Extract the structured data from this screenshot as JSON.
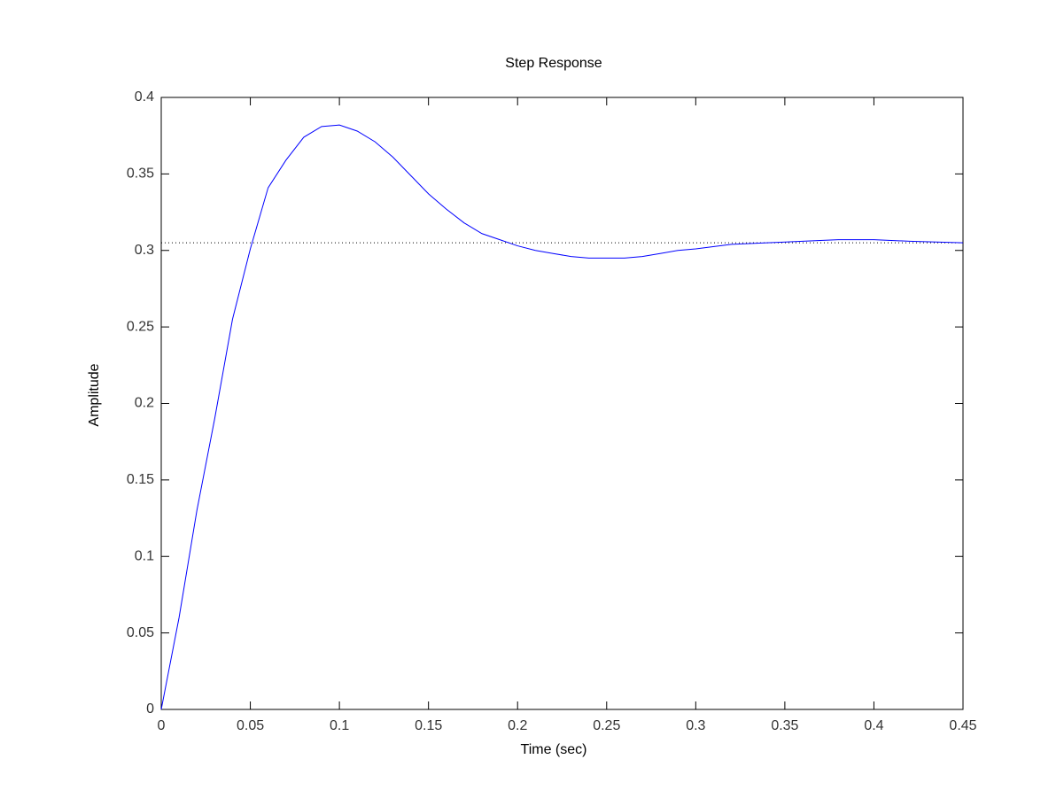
{
  "chart_data": {
    "type": "line",
    "title": "Step Response",
    "x_label": "Time (sec)",
    "y_label": "Amplitude",
    "x": [
      0,
      0.01,
      0.02,
      0.03,
      0.04,
      0.05,
      0.06,
      0.07,
      0.08,
      0.09,
      0.1,
      0.11,
      0.12,
      0.13,
      0.14,
      0.15,
      0.16,
      0.17,
      0.18,
      0.19,
      0.2,
      0.21,
      0.22,
      0.23,
      0.24,
      0.25,
      0.26,
      0.27,
      0.28,
      0.29,
      0.3,
      0.32,
      0.34,
      0.36,
      0.38,
      0.4,
      0.42,
      0.45
    ],
    "series": [
      {
        "color": "#0000ff",
        "values": [
          0,
          0.06,
          0.13,
          0.19,
          0.255,
          0.301,
          0.341,
          0.359,
          0.374,
          0.381,
          0.382,
          0.378,
          0.371,
          0.361,
          0.349,
          0.337,
          0.327,
          0.318,
          0.311,
          0.307,
          0.303,
          0.3,
          0.298,
          0.296,
          0.295,
          0.295,
          0.295,
          0.296,
          0.298,
          0.3,
          0.301,
          0.304,
          0.305,
          0.306,
          0.307,
          0.307,
          0.306,
          0.305
        ]
      }
    ],
    "steady_state": 0.305,
    "xlim": [
      0,
      0.45
    ],
    "xticks": [
      0,
      0.05,
      0.1,
      0.15,
      0.2,
      0.25,
      0.3,
      0.35,
      0.4,
      0.45
    ],
    "ylim": [
      0,
      0.4
    ],
    "yticks": [
      0,
      0.05,
      0.1,
      0.15,
      0.2,
      0.25,
      0.3,
      0.35,
      0.4
    ],
    "grid": false
  }
}
